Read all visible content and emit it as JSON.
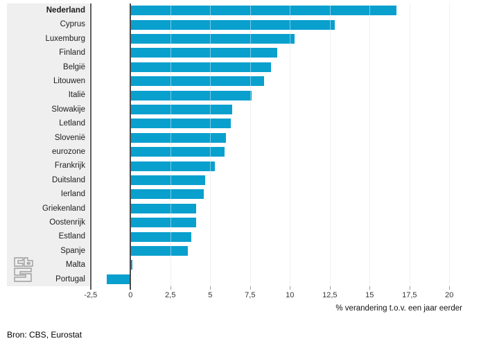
{
  "chart_data": {
    "type": "bar",
    "orientation": "horizontal",
    "title": "",
    "xlabel": "% verandering t.o.v. een jaar eerder",
    "ylabel": "",
    "xlim": [
      -2.5,
      20
    ],
    "grid": "vertical",
    "legend_position": "none",
    "bar_color": "#0aa0ce",
    "highlight_category": "Nederland",
    "x_tick_values": [
      -2.5,
      0,
      2.5,
      5,
      7.5,
      10,
      12.5,
      15,
      17.5,
      20
    ],
    "x_tick_labels": [
      "-2,5",
      "0",
      "2,5",
      "5",
      "7,5",
      "10",
      "12,5",
      "15",
      "17,5",
      "20"
    ],
    "categories": [
      "Nederland",
      "Cyprus",
      "Luxemburg",
      "Finland",
      "België",
      "Litouwen",
      "Italië",
      "Slowakije",
      "Letland",
      "Slovenië",
      "eurozone",
      "Frankrijk",
      "Duitsland",
      "Ierland",
      "Griekenland",
      "Oostenrijk",
      "Estland",
      "Spanje",
      "Malta",
      "Portugal"
    ],
    "values": [
      16.7,
      12.8,
      10.3,
      9.2,
      8.8,
      8.4,
      7.6,
      6.4,
      6.3,
      6.0,
      5.9,
      5.3,
      4.7,
      4.6,
      4.1,
      4.1,
      3.8,
      3.6,
      0.1,
      -1.5
    ]
  },
  "footer": {
    "source": "Bron: CBS, Eurostat",
    "logo_icon": "cbs-logo"
  }
}
